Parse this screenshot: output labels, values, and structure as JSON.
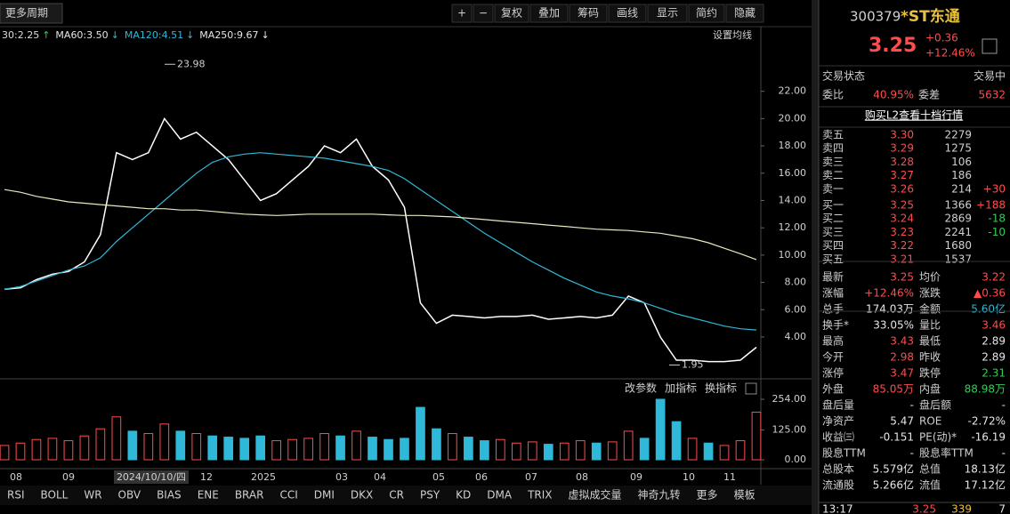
{
  "toolbar": {
    "period": "更多周期",
    "buttons": [
      "+",
      "−",
      "复权",
      "叠加",
      "筹码",
      "画线",
      "显示",
      "简约",
      "隐藏"
    ]
  },
  "ma_legend": {
    "items": [
      "30:2.25",
      "↑",
      "MA60:3.50",
      "↓",
      "MA120:4.51",
      "↓",
      "MA250:9.67",
      "↓"
    ],
    "settings": "设置均线"
  },
  "chart_data": {
    "type": "line",
    "yticks": [
      {
        "value": 22,
        "label": "22.00"
      },
      {
        "value": 20,
        "label": "20.00"
      },
      {
        "value": 18,
        "label": "18.00"
      },
      {
        "value": 16,
        "label": "16.00"
      },
      {
        "value": 14,
        "label": "14.00"
      },
      {
        "value": 12,
        "label": "12.00"
      },
      {
        "value": 10,
        "label": "10.00"
      },
      {
        "value": 8,
        "label": "8.00"
      },
      {
        "value": 6,
        "label": "6.00"
      },
      {
        "value": 4,
        "label": "4.00"
      }
    ],
    "ylim": [
      1,
      25.3
    ],
    "annotations": [
      23.98,
      1.95
    ],
    "series": [
      {
        "name": "收盘",
        "color": "#ffffff",
        "values": [
          7.5,
          7.6,
          8.2,
          8.6,
          8.8,
          9.5,
          11.5,
          17.5,
          17,
          17.5,
          20,
          18.5,
          19,
          18,
          17,
          15.5,
          14,
          14.5,
          15.5,
          16.5,
          18,
          17.5,
          18.5,
          16.5,
          15.5,
          13.5,
          6.5,
          5,
          5.6,
          5.5,
          5.4,
          5.5,
          5.5,
          5.6,
          5.3,
          5.4,
          5.5,
          5.4,
          5.6,
          7,
          6.5,
          4,
          2.3,
          2.3,
          2.2,
          2.2,
          2.3,
          3.25
        ]
      },
      {
        "name": "MA120",
        "color": "#2fb8d8",
        "values": [
          7.5,
          7.7,
          8.1,
          8.5,
          8.9,
          9.2,
          9.8,
          11,
          12,
          13,
          14,
          15,
          16,
          16.8,
          17.2,
          17.4,
          17.5,
          17.4,
          17.3,
          17.2,
          17.1,
          16.9,
          16.7,
          16.5,
          16.2,
          15.6,
          14.8,
          14,
          13.2,
          12.4,
          11.6,
          10.9,
          10.2,
          9.5,
          8.9,
          8.3,
          7.8,
          7.3,
          7,
          6.8,
          6.5,
          6.1,
          5.7,
          5.4,
          5.1,
          4.8,
          4.6,
          4.51
        ]
      },
      {
        "name": "MA250",
        "color": "#e8e8c0",
        "values": [
          14.8,
          14.6,
          14.3,
          14.1,
          13.9,
          13.8,
          13.7,
          13.6,
          13.5,
          13.4,
          13.4,
          13.3,
          13.3,
          13.2,
          13.1,
          13,
          12.95,
          12.9,
          12.95,
          13,
          13,
          13,
          13,
          13,
          12.95,
          12.9,
          12.9,
          12.85,
          12.8,
          12.7,
          12.6,
          12.5,
          12.4,
          12.3,
          12.2,
          12.1,
          12,
          11.9,
          11.85,
          11.8,
          11.7,
          11.6,
          11.4,
          11.2,
          10.9,
          10.5,
          10.1,
          9.67
        ]
      }
    ]
  },
  "volume_data": {
    "type": "bar",
    "header": [
      "改参数",
      "加指标",
      "换指标"
    ],
    "ylim": [
      -18.7,
      287.6
    ],
    "yticks": [
      {
        "value": 254,
        "label": "254.00"
      },
      {
        "value": 125,
        "label": "125.00"
      },
      {
        "value": 0,
        "label": "0.00"
      }
    ],
    "values": [
      60,
      70,
      85,
      90,
      80,
      100,
      130,
      180,
      120,
      110,
      150,
      120,
      110,
      100,
      95,
      90,
      100,
      80,
      85,
      90,
      110,
      100,
      120,
      95,
      85,
      90,
      220,
      130,
      110,
      95,
      80,
      85,
      70,
      75,
      65,
      70,
      80,
      70,
      75,
      120,
      90,
      254,
      160,
      90,
      70,
      60,
      80,
      200
    ]
  },
  "date_axis": [
    "08",
    "09",
    "2024/10/10/四",
    "12",
    "2025",
    "03",
    "04",
    "05",
    "06",
    "07",
    "08",
    "09",
    "10",
    "11"
  ],
  "tabs": [
    "RSI",
    "BOLL",
    "WR",
    "OBV",
    "BIAS",
    "ENE",
    "BRAR",
    "CCI",
    "DMI",
    "DKX",
    "CR",
    "PSY",
    "KD",
    "DMA",
    "TRIX",
    "虚拟成交量",
    "神奇九转",
    "更多",
    "模板"
  ],
  "quote": {
    "code": "300379",
    "name": "*ST东通",
    "price": "3.25",
    "change": "+0.36",
    "pct": "+12.46%",
    "status": [
      "交易状态",
      "交易中"
    ],
    "weibi": [
      "委比",
      "40.95%",
      "委差",
      "5632"
    ],
    "l2": "购买L2查看十档行情",
    "sells": [
      [
        "卖五",
        "3.30",
        "2279"
      ],
      [
        "卖四",
        "3.29",
        "1275"
      ],
      [
        "卖三",
        "3.28",
        "106"
      ],
      [
        "卖二",
        "3.27",
        "186"
      ],
      [
        "卖一",
        "3.26",
        "214",
        "+30"
      ]
    ],
    "buys": [
      [
        "买一",
        "3.25",
        "1366",
        "+188"
      ],
      [
        "买二",
        "3.24",
        "2869",
        "-18"
      ],
      [
        "买三",
        "3.23",
        "2241",
        "-10"
      ],
      [
        "买四",
        "3.22",
        "1680"
      ],
      [
        "买五",
        "3.21",
        "1537"
      ]
    ],
    "stats": [
      [
        "最新",
        "3.25",
        "均价",
        "3.22"
      ],
      [
        "涨幅",
        "+12.46%",
        "涨跌",
        "▲0.36"
      ],
      [
        "总手",
        "174.03万",
        "金额",
        "5.60亿"
      ],
      [
        "换手*",
        "33.05%",
        "量比",
        "3.46"
      ],
      [
        "最高",
        "3.43",
        "最低",
        "2.89"
      ],
      [
        "今开",
        "2.98",
        "昨收",
        "2.89"
      ],
      [
        "涨停",
        "3.47",
        "跌停",
        "2.31"
      ],
      [
        "外盘",
        "85.05万",
        "内盘",
        "88.98万"
      ],
      [
        "盘后量",
        "-",
        "盘后额",
        "-"
      ],
      [
        "净资产",
        "5.47",
        "ROE",
        "-2.72%"
      ],
      [
        "收益㈢",
        "-0.151",
        "PE(动)*",
        "-16.19"
      ],
      [
        "股息TTM",
        "-",
        "股息率TTM",
        "-"
      ],
      [
        "总股本",
        "5.579亿",
        "总值",
        "18.13亿"
      ],
      [
        "流通股",
        "5.266亿",
        "流值",
        "17.12亿"
      ]
    ],
    "tick": [
      "13:17",
      "3.25",
      "339",
      "7"
    ]
  }
}
